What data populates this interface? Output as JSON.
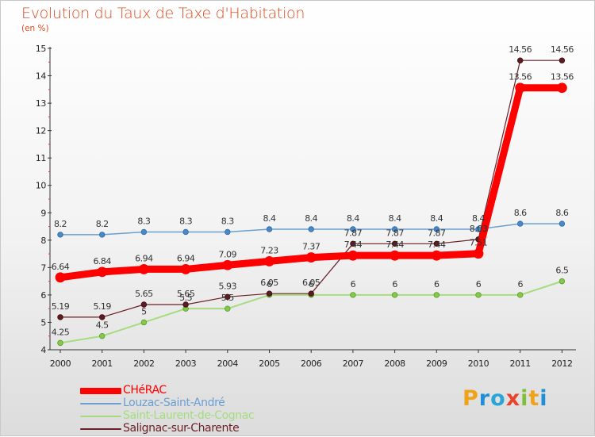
{
  "chart_data": {
    "type": "line",
    "title": "Evolution du Taux de Taxe d'Habitation",
    "unit_label": "(en %)",
    "x": [
      "2000",
      "2001",
      "2002",
      "2003",
      "2004",
      "2005",
      "2006",
      "2007",
      "2008",
      "2009",
      "2010",
      "2011",
      "2012"
    ],
    "ylim": [
      4,
      15
    ],
    "yticks": [
      "4",
      "5",
      "6",
      "7",
      "8",
      "9",
      "10",
      "11",
      "12",
      "13",
      "14",
      "15"
    ],
    "grid": false,
    "legend_position": "bottom-left",
    "series": [
      {
        "name": "CHéRAC",
        "color": "#ff0000",
        "values": [
          6.64,
          6.84,
          6.94,
          6.94,
          7.09,
          7.23,
          7.37,
          7.44,
          7.44,
          7.44,
          7.51,
          13.56,
          13.56
        ],
        "labels": [
          "6.64",
          "6.84",
          "6.94",
          "6.94",
          "7.09",
          "7.23",
          "7.37",
          "7.44",
          "7.44",
          "7.44",
          "7.51",
          "13.56",
          "13.56"
        ]
      },
      {
        "name": "Louzac-Saint-André",
        "color": "#6a9fd0",
        "values": [
          8.2,
          8.2,
          8.3,
          8.3,
          8.3,
          8.4,
          8.4,
          8.4,
          8.4,
          8.4,
          8.4,
          8.6,
          8.6
        ],
        "labels": [
          "8.2",
          "8.2",
          "8.3",
          "8.3",
          "8.3",
          "8.4",
          "8.4",
          "8.4",
          "8.4",
          "8.4",
          "8.4",
          "8.6",
          "8.6"
        ]
      },
      {
        "name": "Saint-Laurent-de-Cognac",
        "color": "#a6dc80",
        "values": [
          4.25,
          4.5,
          5,
          5.5,
          5.5,
          6,
          6,
          6,
          6,
          6,
          6,
          6,
          6.5
        ],
        "labels": [
          "4.25",
          "4.5",
          "5",
          "5.5",
          "5.5",
          "6",
          "6",
          "6",
          "6",
          "6",
          "6",
          "6",
          "6.5"
        ]
      },
      {
        "name": "Salignac-sur-Charente",
        "color": "#6b2126",
        "values": [
          5.19,
          5.19,
          5.65,
          5.65,
          5.93,
          6.05,
          6.05,
          7.87,
          7.87,
          7.87,
          8.03,
          14.56,
          14.56
        ],
        "labels": [
          "5.19",
          "5.19",
          "5.65",
          "5.65",
          "5.93",
          "6.05",
          "6.05",
          "7.87",
          "7.87",
          "7.87",
          "8.03",
          "14.56",
          "14.56"
        ]
      }
    ]
  },
  "brand": {
    "letters": [
      "P",
      "r",
      "o",
      "x",
      "i",
      "t",
      "i"
    ],
    "colors": [
      "#f0a21a",
      "#1f8fd6",
      "#2aa6d6",
      "#e8432c",
      "#7fbf3a",
      "#f0a21a",
      "#1f8fd6"
    ]
  }
}
